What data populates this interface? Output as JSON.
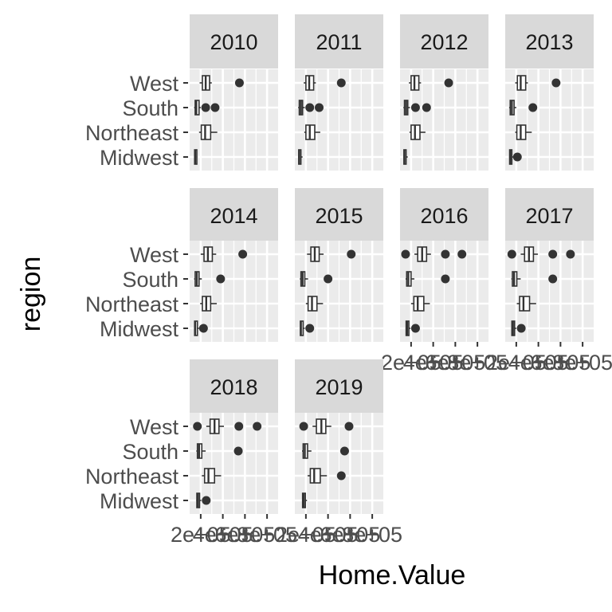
{
  "chart_data": {
    "type": "boxplot",
    "layout": "facet_wrap",
    "xlabel": "Home.Value",
    "ylabel": "region",
    "x_tick_labels": [
      "2e+05",
      "4e+05",
      "6e+05",
      "8e+05"
    ],
    "categories": [
      "West",
      "South",
      "Northeast",
      "Midwest"
    ],
    "xlim": [
      100000,
      900000
    ],
    "grid": true,
    "colors": {
      "panel_bg": "#ebebeb",
      "grid": "#ffffff",
      "strip_bg": "#d9d9d9",
      "box_fill": "#ffffff",
      "box_line": "#333333",
      "outlier": "#333333"
    },
    "facets": [
      {
        "label": "2010",
        "boxes": [
          {
            "region": "West",
            "lower": 190000,
            "q1": 215000,
            "median": 245000,
            "q3": 280000,
            "upper": 300000,
            "outliers": [
              550000
            ]
          },
          {
            "region": "South",
            "lower": 140000,
            "q1": 150000,
            "median": 160000,
            "q3": 185000,
            "upper": 200000,
            "outliers": [
              245000,
              330000
            ]
          },
          {
            "region": "Northeast",
            "lower": 185000,
            "q1": 205000,
            "median": 240000,
            "q3": 290000,
            "upper": 350000,
            "outliers": []
          },
          {
            "region": "Midwest",
            "lower": 140000,
            "q1": 145000,
            "median": 150000,
            "q3": 165000,
            "upper": 170000,
            "outliers": []
          }
        ]
      },
      {
        "label": "2011",
        "boxes": [
          {
            "region": "West",
            "lower": 180000,
            "q1": 200000,
            "median": 230000,
            "q3": 270000,
            "upper": 290000,
            "outliers": [
              520000
            ]
          },
          {
            "region": "South",
            "lower": 130000,
            "q1": 140000,
            "median": 155000,
            "q3": 170000,
            "upper": 190000,
            "outliers": [
              235000,
              320000
            ]
          },
          {
            "region": "Northeast",
            "lower": 185000,
            "q1": 200000,
            "median": 235000,
            "q3": 280000,
            "upper": 330000,
            "outliers": []
          },
          {
            "region": "Midwest",
            "lower": 130000,
            "q1": 135000,
            "median": 140000,
            "q3": 155000,
            "upper": 170000,
            "outliers": []
          }
        ]
      },
      {
        "label": "2012",
        "boxes": [
          {
            "region": "West",
            "lower": 180000,
            "q1": 200000,
            "median": 230000,
            "q3": 270000,
            "upper": 290000,
            "outliers": [
              540000
            ]
          },
          {
            "region": "South",
            "lower": 130000,
            "q1": 140000,
            "median": 155000,
            "q3": 170000,
            "upper": 190000,
            "outliers": [
              240000,
              340000
            ]
          },
          {
            "region": "Northeast",
            "lower": 185000,
            "q1": 200000,
            "median": 235000,
            "q3": 280000,
            "upper": 330000,
            "outliers": []
          },
          {
            "region": "Midwest",
            "lower": 130000,
            "q1": 135000,
            "median": 140000,
            "q3": 155000,
            "upper": 170000,
            "outliers": []
          }
        ]
      },
      {
        "label": "2013",
        "boxes": [
          {
            "region": "West",
            "lower": 190000,
            "q1": 210000,
            "median": 240000,
            "q3": 285000,
            "upper": 305000,
            "outliers": [
              560000
            ]
          },
          {
            "region": "South",
            "lower": 135000,
            "q1": 145000,
            "median": 160000,
            "q3": 180000,
            "upper": 200000,
            "outliers": [
              350000
            ]
          },
          {
            "region": "Northeast",
            "lower": 190000,
            "q1": 205000,
            "median": 240000,
            "q3": 285000,
            "upper": 340000,
            "outliers": []
          },
          {
            "region": "Midwest",
            "lower": 135000,
            "q1": 140000,
            "median": 145000,
            "q3": 160000,
            "upper": 175000,
            "outliers": [
              210000
            ]
          }
        ]
      },
      {
        "label": "2014",
        "boxes": [
          {
            "region": "West",
            "lower": 200000,
            "q1": 230000,
            "median": 265000,
            "q3": 305000,
            "upper": 340000,
            "outliers": [
              580000
            ]
          },
          {
            "region": "South",
            "lower": 140000,
            "q1": 150000,
            "median": 165000,
            "q3": 185000,
            "upper": 210000,
            "outliers": [
              380000
            ]
          },
          {
            "region": "Northeast",
            "lower": 195000,
            "q1": 215000,
            "median": 250000,
            "q3": 290000,
            "upper": 345000,
            "outliers": []
          },
          {
            "region": "Midwest",
            "lower": 140000,
            "q1": 145000,
            "median": 150000,
            "q3": 170000,
            "upper": 185000,
            "outliers": [
              225000
            ]
          }
        ]
      },
      {
        "label": "2015",
        "boxes": [
          {
            "region": "West",
            "lower": 210000,
            "q1": 245000,
            "median": 280000,
            "q3": 320000,
            "upper": 360000,
            "outliers": [
              610000
            ]
          },
          {
            "region": "South",
            "lower": 145000,
            "q1": 155000,
            "median": 170000,
            "q3": 190000,
            "upper": 220000,
            "outliers": [
              400000
            ]
          },
          {
            "region": "Northeast",
            "lower": 200000,
            "q1": 220000,
            "median": 255000,
            "q3": 300000,
            "upper": 355000,
            "outliers": []
          },
          {
            "region": "Midwest",
            "lower": 145000,
            "q1": 150000,
            "median": 155000,
            "q3": 175000,
            "upper": 190000,
            "outliers": [
              235000
            ]
          }
        ]
      },
      {
        "label": "2016",
        "boxes": [
          {
            "region": "West",
            "lower": 230000,
            "q1": 260000,
            "median": 300000,
            "q3": 340000,
            "upper": 380000,
            "outliers": [
              150000,
              510000,
              660000
            ]
          },
          {
            "region": "South",
            "lower": 150000,
            "q1": 160000,
            "median": 175000,
            "q3": 200000,
            "upper": 230000,
            "outliers": [
              510000
            ]
          },
          {
            "region": "Northeast",
            "lower": 200000,
            "q1": 225000,
            "median": 260000,
            "q3": 315000,
            "upper": 370000,
            "outliers": []
          },
          {
            "region": "Midwest",
            "lower": 150000,
            "q1": 155000,
            "median": 165000,
            "q3": 180000,
            "upper": 195000,
            "outliers": [
              240000
            ]
          }
        ]
      },
      {
        "label": "2017",
        "boxes": [
          {
            "region": "West",
            "lower": 240000,
            "q1": 275000,
            "median": 315000,
            "q3": 355000,
            "upper": 395000,
            "outliers": [
              160000,
              530000,
              690000
            ]
          },
          {
            "region": "South",
            "lower": 155000,
            "q1": 165000,
            "median": 180000,
            "q3": 205000,
            "upper": 240000,
            "outliers": [
              530000
            ]
          },
          {
            "region": "Northeast",
            "lower": 205000,
            "q1": 230000,
            "median": 265000,
            "q3": 320000,
            "upper": 380000,
            "outliers": []
          },
          {
            "region": "Midwest",
            "lower": 155000,
            "q1": 160000,
            "median": 170000,
            "q3": 185000,
            "upper": 200000,
            "outliers": [
              245000
            ]
          }
        ]
      },
      {
        "label": "2018",
        "boxes": [
          {
            "region": "West",
            "lower": 250000,
            "q1": 285000,
            "median": 325000,
            "q3": 365000,
            "upper": 410000,
            "outliers": [
              170000,
              545000,
              710000
            ]
          },
          {
            "region": "South",
            "lower": 160000,
            "q1": 170000,
            "median": 185000,
            "q3": 210000,
            "upper": 245000,
            "outliers": [
              540000
            ]
          },
          {
            "region": "Northeast",
            "lower": 210000,
            "q1": 235000,
            "median": 270000,
            "q3": 325000,
            "upper": 385000,
            "outliers": []
          },
          {
            "region": "Midwest",
            "lower": 160000,
            "q1": 165000,
            "median": 175000,
            "q3": 190000,
            "upper": 205000,
            "outliers": [
              250000
            ]
          }
        ]
      },
      {
        "label": "2019",
        "boxes": [
          {
            "region": "West",
            "lower": 260000,
            "q1": 295000,
            "median": 340000,
            "q3": 380000,
            "upper": 430000,
            "outliers": [
              180000,
              590000
            ]
          },
          {
            "region": "South",
            "lower": 165000,
            "q1": 175000,
            "median": 190000,
            "q3": 215000,
            "upper": 250000,
            "outliers": [
              550000
            ]
          },
          {
            "region": "Northeast",
            "lower": 215000,
            "q1": 240000,
            "median": 275000,
            "q3": 330000,
            "upper": 390000,
            "outliers": [
              520000
            ]
          },
          {
            "region": "Midwest",
            "lower": 165000,
            "q1": 170000,
            "median": 180000,
            "q3": 195000,
            "upper": 210000,
            "outliers": []
          }
        ]
      }
    ]
  }
}
